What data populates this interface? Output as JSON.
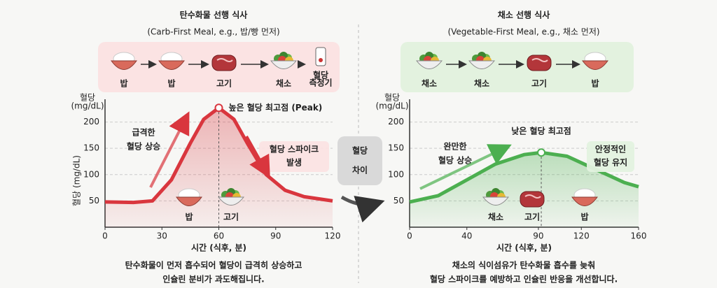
{
  "chart_data": [
    {
      "type": "line",
      "title": "탄수화물 선행 식사",
      "subtitle": "(Carb-First Meal, e.g., 밥/빵 먼저)",
      "sequence": [
        "밥",
        "밥",
        "고기",
        "채소"
      ],
      "device_label": [
        "혈당",
        "측정기"
      ],
      "y_label_top": [
        "혈당",
        "(mg/dL)"
      ],
      "y_label": "혈당 (mg/dL)",
      "x_label": "시간 (식후, 분)",
      "x": [
        0,
        15,
        25,
        35,
        45,
        52,
        60,
        68,
        75,
        85,
        95,
        105,
        120
      ],
      "values": [
        48,
        47,
        50,
        90,
        160,
        205,
        227,
        205,
        160,
        100,
        70,
        58,
        50
      ],
      "peak_index": 6,
      "color": "#d9363e",
      "band_color": "#fbe3e3",
      "xlim": [
        0,
        120
      ],
      "xticks": [
        0,
        30,
        60,
        90,
        120
      ],
      "ylim": [
        0,
        230
      ],
      "yticks": [
        50,
        100,
        150,
        200
      ],
      "grid": true,
      "peak_label": "높은 혈당 최고점 (Peak)",
      "rise_label": [
        "급격한",
        "혈당 상승"
      ],
      "callout": [
        "혈당 스파이크",
        "발생"
      ],
      "chart_foods": [
        "밥",
        "고기"
      ],
      "footer": [
        "탄수화물이 먼저 흡수되어 혈당이 급격히 상승하고",
        "인슐린 분비가 과도해집니다."
      ]
    },
    {
      "type": "line",
      "title": "채소 선행 식사",
      "subtitle": "(Vegetable-First Meal, e.g., 채소 먼저)",
      "sequence": [
        "채소",
        "채소",
        "고기",
        "밥"
      ],
      "y_label_top": [
        "혈당",
        "(mg/dL)"
      ],
      "x_label": "시간 (식후, 분)",
      "x": [
        0,
        20,
        40,
        60,
        80,
        92,
        110,
        130,
        150,
        160
      ],
      "values": [
        48,
        60,
        90,
        120,
        138,
        142,
        135,
        110,
        85,
        77
      ],
      "peak_index": 5,
      "color": "#4caf50",
      "band_color": "#e3f2df",
      "xlim": [
        0,
        160
      ],
      "xticks": [
        0,
        40,
        90,
        120,
        160
      ],
      "ylim": [
        0,
        230
      ],
      "yticks": [
        50,
        100,
        150,
        200
      ],
      "grid": true,
      "peak_label": "낮은 혈당 최고점",
      "rise_label": [
        "완만한",
        "혈당 상승"
      ],
      "callout": [
        "안정적인",
        "혈당 유지"
      ],
      "chart_foods": [
        "채소",
        "고기",
        "밥"
      ],
      "footer": [
        "채소의 식이섬유가 탄수화물 흡수를 늦춰",
        "혈당 스파이크를 예방하고 인슐린 반응을 개선합니다."
      ]
    }
  ],
  "middle_label": [
    "혈당",
    "차이"
  ]
}
